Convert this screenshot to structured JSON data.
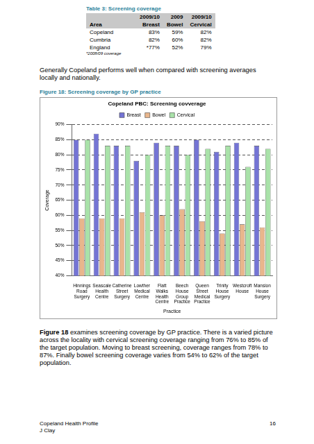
{
  "table": {
    "caption": "Table 3: Screening coverage",
    "years": [
      "2009/10",
      "2009",
      "2009/10"
    ],
    "columns": [
      "Area",
      "Breast",
      "Bowel",
      "Cervical"
    ],
    "rows": [
      [
        "Copeland",
        "83%",
        "59%",
        "82%"
      ],
      [
        "Cumbria",
        "82%",
        "60%",
        "82%"
      ],
      [
        "England",
        "*77%",
        "52%",
        "79%"
      ]
    ],
    "note": "*2008/09 coverage"
  },
  "paragraph1": "Generally Copeland performs well when compared with screening averages locally and nationally.",
  "figure_caption": "Figure 18: Screening coverage by GP practice",
  "chart_data": {
    "type": "bar",
    "title": "Copeland PBC: Screening covverage",
    "x_label": "Practice",
    "y_label": "Coverage",
    "categories": [
      "Hinnings Road Surgery",
      "Seascale Health Centre",
      "Catherine Street Surgery",
      "Lowther Medical Centre",
      "Flatt Walks Health Centre",
      "Beech House Group Practice",
      "Queen Street Medical Practice",
      "Trinity House Surgery",
      "Westcroft House",
      "Mansion House Surgery"
    ],
    "series": [
      {
        "name": "Breast",
        "color": "#7474d4",
        "values": [
          85,
          87,
          83,
          78,
          84,
          83,
          85,
          81,
          84,
          83
        ]
      },
      {
        "name": "Bowel",
        "color": "#e9b68c",
        "values": [
          59,
          59,
          59,
          61,
          60,
          62,
          58,
          54,
          57,
          56
        ]
      },
      {
        "name": "Cervical",
        "color": "#a9e2a9",
        "values": [
          85,
          83,
          83,
          80,
          83,
          80,
          82,
          83,
          76,
          82
        ]
      }
    ],
    "ylim": [
      40,
      90
    ],
    "yticks": [
      {
        "value": 40,
        "label": "40%"
      },
      {
        "value": 45,
        "label": "45%"
      },
      {
        "value": 50,
        "label": "50%"
      },
      {
        "value": 55,
        "label": "55%"
      },
      {
        "value": 60,
        "label": "60%"
      },
      {
        "value": 65,
        "label": "65%"
      },
      {
        "value": 70,
        "label": "70%"
      },
      {
        "value": 75,
        "label": "75%"
      },
      {
        "value": 80,
        "label": "80%"
      },
      {
        "value": 85,
        "label": "85%"
      },
      {
        "value": 90,
        "label": "90%"
      }
    ],
    "grid": true,
    "legend": "top"
  },
  "paragraph2": {
    "lead": "Figure 18",
    "text": "examines screening coverage by GP practice. There is a varied picture across the locality with cervical screening coverage ranging from 76% to 85% of the target population. Moving to breast screening, coverage ranges from 78% to 87%. Finally bowel screening coverage varies from 54% to 62% of the target population."
  },
  "footer": {
    "left": [
      "Copeland Health Profile",
      "J Clay"
    ],
    "page": 16
  }
}
